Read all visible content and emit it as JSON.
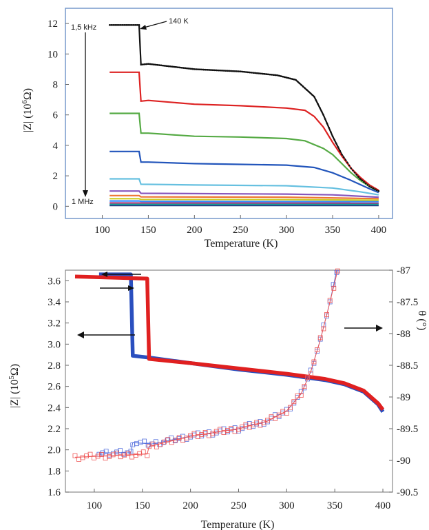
{
  "chart_data": [
    {
      "type": "line",
      "xlabel": "Temperature (K)",
      "ylabel": "|Z| (10^6 Ω)",
      "xlim": [
        60,
        415
      ],
      "ylim": [
        -0.8,
        13
      ],
      "x_ticks": [
        100,
        150,
        200,
        250,
        300,
        350,
        400
      ],
      "y_ticks": [
        0,
        2,
        4,
        6,
        8,
        10,
        12
      ],
      "grid": false,
      "annotations": {
        "top_freq": "1,5 kHz",
        "bottom_freq": "1 MHz",
        "transition": "140 K"
      },
      "series": [
        {
          "color": "#111111",
          "points": [
            [
              108,
              11.9
            ],
            [
              140,
              11.9
            ],
            [
              142,
              9.3
            ],
            [
              150,
              9.35
            ],
            [
              200,
              9.0
            ],
            [
              250,
              8.85
            ],
            [
              290,
              8.6
            ],
            [
              310,
              8.3
            ],
            [
              330,
              7.2
            ],
            [
              340,
              6.0
            ],
            [
              350,
              4.6
            ],
            [
              360,
              3.4
            ],
            [
              370,
              2.5
            ],
            [
              380,
              1.8
            ],
            [
              390,
              1.3
            ],
            [
              400,
              1.0
            ]
          ]
        },
        {
          "color": "#dd2222",
          "points": [
            [
              108,
              8.8
            ],
            [
              140,
              8.8
            ],
            [
              142,
              6.9
            ],
            [
              150,
              6.95
            ],
            [
              200,
              6.7
            ],
            [
              250,
              6.6
            ],
            [
              300,
              6.45
            ],
            [
              320,
              6.3
            ],
            [
              330,
              5.9
            ],
            [
              340,
              5.2
            ],
            [
              350,
              4.2
            ],
            [
              360,
              3.3
            ],
            [
              370,
              2.5
            ],
            [
              380,
              1.9
            ],
            [
              390,
              1.4
            ],
            [
              400,
              1.05
            ]
          ]
        },
        {
          "color": "#55aa44",
          "points": [
            [
              108,
              6.1
            ],
            [
              140,
              6.1
            ],
            [
              142,
              4.8
            ],
            [
              150,
              4.8
            ],
            [
              200,
              4.6
            ],
            [
              250,
              4.55
            ],
            [
              300,
              4.45
            ],
            [
              320,
              4.3
            ],
            [
              340,
              3.8
            ],
            [
              350,
              3.4
            ],
            [
              360,
              2.8
            ],
            [
              370,
              2.2
            ],
            [
              380,
              1.7
            ],
            [
              390,
              1.3
            ],
            [
              400,
              0.95
            ]
          ]
        },
        {
          "color": "#2255bb",
          "points": [
            [
              108,
              3.6
            ],
            [
              140,
              3.6
            ],
            [
              142,
              2.9
            ],
            [
              150,
              2.9
            ],
            [
              200,
              2.8
            ],
            [
              250,
              2.75
            ],
            [
              300,
              2.7
            ],
            [
              330,
              2.55
            ],
            [
              350,
              2.2
            ],
            [
              370,
              1.7
            ],
            [
              390,
              1.15
            ],
            [
              400,
              0.9
            ]
          ]
        },
        {
          "color": "#66c0e0",
          "points": [
            [
              108,
              1.8
            ],
            [
              140,
              1.8
            ],
            [
              142,
              1.45
            ],
            [
              200,
              1.4
            ],
            [
              300,
              1.35
            ],
            [
              350,
              1.2
            ],
            [
              380,
              0.95
            ],
            [
              400,
              0.75
            ]
          ]
        },
        {
          "color": "#8855bb",
          "points": [
            [
              108,
              1.0
            ],
            [
              140,
              1.0
            ],
            [
              142,
              0.85
            ],
            [
              300,
              0.8
            ],
            [
              350,
              0.75
            ],
            [
              400,
              0.6
            ]
          ]
        },
        {
          "color": "#ee7733",
          "points": [
            [
              108,
              0.7
            ],
            [
              140,
              0.7
            ],
            [
              142,
              0.62
            ],
            [
              300,
              0.6
            ],
            [
              400,
              0.5
            ]
          ]
        },
        {
          "color": "#cccc22",
          "points": [
            [
              108,
              0.5
            ],
            [
              140,
              0.5
            ],
            [
              142,
              0.45
            ],
            [
              300,
              0.44
            ],
            [
              400,
              0.4
            ]
          ]
        },
        {
          "color": "#3388ff",
          "points": [
            [
              108,
              0.35
            ],
            [
              140,
              0.35
            ],
            [
              142,
              0.32
            ],
            [
              400,
              0.3
            ]
          ]
        },
        {
          "color": "#aa3377",
          "points": [
            [
              108,
              0.22
            ],
            [
              400,
              0.2
            ]
          ]
        },
        {
          "color": "#11aa99",
          "points": [
            [
              108,
              0.12
            ],
            [
              400,
              0.12
            ]
          ]
        },
        {
          "color": "#224488",
          "points": [
            [
              108,
              0.05
            ],
            [
              400,
              0.05
            ]
          ]
        }
      ]
    },
    {
      "type": "line",
      "xlabel": "Temperature (K)",
      "ylabel": "|Z| (10^5 Ω)",
      "y2label": "θ (°)",
      "xlim": [
        70,
        410
      ],
      "ylim": [
        1.6,
        3.7
      ],
      "y2lim": [
        -90.5,
        -87
      ],
      "x_ticks": [
        100,
        150,
        200,
        250,
        300,
        350,
        400
      ],
      "y_ticks": [
        1.6,
        1.8,
        2.0,
        2.2,
        2.4,
        2.6,
        2.8,
        3.0,
        3.2,
        3.4,
        3.6
      ],
      "y2_ticks": [
        -87,
        -87.5,
        -88,
        -88.5,
        -89,
        -89.5,
        -90,
        -90.5
      ],
      "grid": false,
      "series": [
        {
          "axis": "left",
          "color": "#2a4fbf",
          "points": [
            [
              105,
              3.66
            ],
            [
              138,
              3.66
            ],
            [
              140,
              2.89
            ],
            [
              160,
              2.87
            ],
            [
              200,
              2.82
            ],
            [
              250,
              2.76
            ],
            [
              300,
              2.71
            ],
            [
              340,
              2.66
            ],
            [
              360,
              2.62
            ],
            [
              380,
              2.55
            ],
            [
              395,
              2.43
            ],
            [
              400,
              2.36
            ]
          ]
        },
        {
          "axis": "left",
          "color": "#e02020",
          "points": [
            [
              80,
              3.64
            ],
            [
              155,
              3.62
            ],
            [
              157,
              2.86
            ],
            [
              200,
              2.82
            ],
            [
              250,
              2.77
            ],
            [
              300,
              2.72
            ],
            [
              340,
              2.67
            ],
            [
              360,
              2.63
            ],
            [
              380,
              2.56
            ],
            [
              395,
              2.44
            ],
            [
              400,
              2.38
            ]
          ]
        },
        {
          "axis": "right",
          "color": "#5570dd",
          "points": [
            [
              105,
              -89.88
            ],
            [
              138,
              -89.88
            ],
            [
              140,
              -89.72
            ],
            [
              160,
              -89.74
            ],
            [
              200,
              -89.62
            ],
            [
              250,
              -89.5
            ],
            [
              280,
              -89.38
            ],
            [
              300,
              -89.22
            ],
            [
              315,
              -88.95
            ],
            [
              325,
              -88.6
            ],
            [
              335,
              -88.1
            ],
            [
              345,
              -87.5
            ],
            [
              352,
              -87.0
            ]
          ]
        },
        {
          "axis": "right",
          "color": "#ee5555",
          "points": [
            [
              80,
              -89.95
            ],
            [
              155,
              -89.9
            ],
            [
              157,
              -89.78
            ],
            [
              200,
              -89.62
            ],
            [
              250,
              -89.5
            ],
            [
              280,
              -89.38
            ],
            [
              300,
              -89.22
            ],
            [
              315,
              -88.95
            ],
            [
              325,
              -88.6
            ],
            [
              335,
              -88.1
            ],
            [
              345,
              -87.5
            ],
            [
              353,
              -87.0
            ]
          ]
        }
      ]
    }
  ]
}
